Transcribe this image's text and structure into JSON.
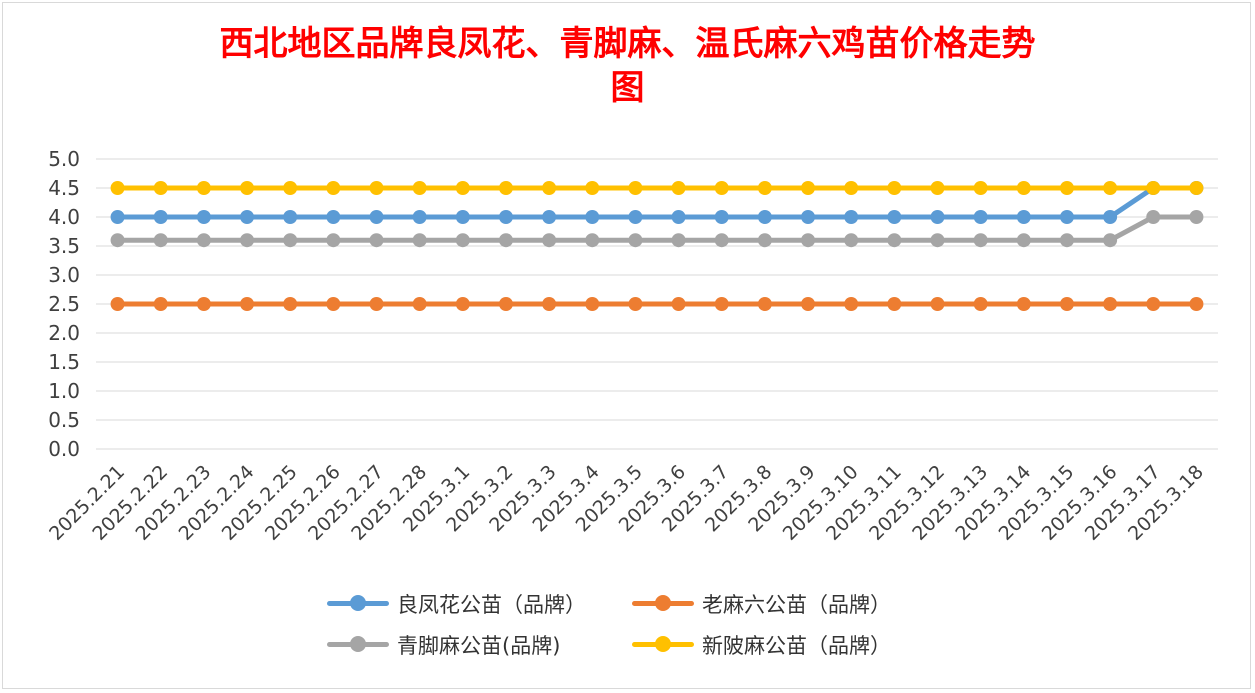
{
  "chart_data": {
    "type": "line",
    "title_line1": "西北地区品牌良凤花、青脚麻、温氏麻六鸡苗价格走势",
    "title_line2": "图",
    "title_color": "#ff0000",
    "xlabel": "",
    "ylabel": "",
    "ylim": [
      0,
      5
    ],
    "yticks": [
      "0.0",
      "0.5",
      "1.0",
      "1.5",
      "2.0",
      "2.5",
      "3.0",
      "3.5",
      "4.0",
      "4.5",
      "5.0"
    ],
    "grid": true,
    "legend_position": "bottom",
    "categories": [
      "2025.2.21",
      "2025.2.22",
      "2025.2.23",
      "2025.2.24",
      "2025.2.25",
      "2025.2.26",
      "2025.2.27",
      "2025.2.28",
      "2025.3.1",
      "2025.3.2",
      "2025.3.3",
      "2025.3.4",
      "2025.3.5",
      "2025.3.6",
      "2025.3.7",
      "2025.3.8",
      "2025.3.9",
      "2025.3.10",
      "2025.3.11",
      "2025.3.12",
      "2025.3.13",
      "2025.3.14",
      "2025.3.15",
      "2025.3.16",
      "2025.3.17",
      "2025.3.18"
    ],
    "series": [
      {
        "name": "良凤花公苗（品牌）",
        "color": "#5b9bd5",
        "values": [
          4.0,
          4.0,
          4.0,
          4.0,
          4.0,
          4.0,
          4.0,
          4.0,
          4.0,
          4.0,
          4.0,
          4.0,
          4.0,
          4.0,
          4.0,
          4.0,
          4.0,
          4.0,
          4.0,
          4.0,
          4.0,
          4.0,
          4.0,
          4.0,
          4.5,
          4.5
        ]
      },
      {
        "name": "老麻六公苗（品牌）",
        "color": "#ed7d31",
        "values": [
          2.5,
          2.5,
          2.5,
          2.5,
          2.5,
          2.5,
          2.5,
          2.5,
          2.5,
          2.5,
          2.5,
          2.5,
          2.5,
          2.5,
          2.5,
          2.5,
          2.5,
          2.5,
          2.5,
          2.5,
          2.5,
          2.5,
          2.5,
          2.5,
          2.5,
          2.5
        ]
      },
      {
        "name": "青脚麻公苗(品牌)",
        "color": "#a5a5a5",
        "values": [
          3.6,
          3.6,
          3.6,
          3.6,
          3.6,
          3.6,
          3.6,
          3.6,
          3.6,
          3.6,
          3.6,
          3.6,
          3.6,
          3.6,
          3.6,
          3.6,
          3.6,
          3.6,
          3.6,
          3.6,
          3.6,
          3.6,
          3.6,
          3.6,
          4.0,
          4.0
        ]
      },
      {
        "name": "新陂麻公苗（品牌）",
        "color": "#ffc000",
        "values": [
          4.5,
          4.5,
          4.5,
          4.5,
          4.5,
          4.5,
          4.5,
          4.5,
          4.5,
          4.5,
          4.5,
          4.5,
          4.5,
          4.5,
          4.5,
          4.5,
          4.5,
          4.5,
          4.5,
          4.5,
          4.5,
          4.5,
          4.5,
          4.5,
          4.5,
          4.5
        ]
      }
    ]
  }
}
